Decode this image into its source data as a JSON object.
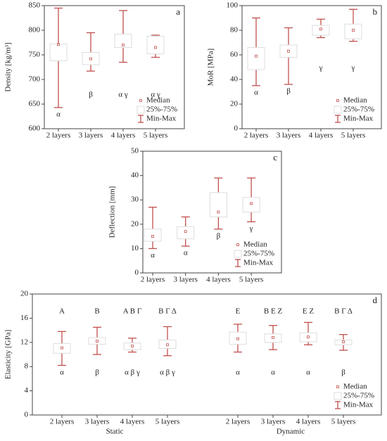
{
  "chart_data": [
    {
      "type": "box",
      "panel": "a",
      "ylabel": "Density [kg/m³]",
      "ylim": [
        600,
        850
      ],
      "yticks": [
        600,
        650,
        700,
        750,
        800,
        850
      ],
      "categories": [
        "2 layers",
        "3 layers",
        "4 layers",
        "5 layers"
      ],
      "color": "#c0504d",
      "boxes": [
        {
          "min": 643,
          "q1": 738,
          "median": 771,
          "q3": 772,
          "max": 845
        },
        {
          "min": 717,
          "q1": 730,
          "median": 742,
          "q3": 755,
          "max": 795
        },
        {
          "min": 735,
          "q1": 765,
          "median": 770,
          "q3": 792,
          "max": 840
        },
        {
          "min": 745,
          "q1": 752,
          "median": 765,
          "q3": 788,
          "max": 790
        }
      ],
      "annotations_below": [
        "α",
        "β",
        "α γ",
        "α γ"
      ],
      "legend": [
        "Median",
        "25%-75%",
        "Min-Max"
      ],
      "legend_position": "lower right"
    },
    {
      "type": "box",
      "panel": "b",
      "ylabel": "MoR [MPa]",
      "ylim": [
        0,
        100
      ],
      "yticks": [
        0,
        20,
        40,
        60,
        80,
        100
      ],
      "categories": [
        "2 layers",
        "3 layers",
        "4 layers",
        "5 layers"
      ],
      "color": "#c0504d",
      "boxes": [
        {
          "min": 35,
          "q1": 48,
          "median": 59,
          "q3": 66,
          "max": 90
        },
        {
          "min": 36,
          "q1": 58,
          "median": 63,
          "q3": 68,
          "max": 82
        },
        {
          "min": 74,
          "q1": 76,
          "median": 81,
          "q3": 84,
          "max": 89
        },
        {
          "min": 71,
          "q1": 73,
          "median": 80,
          "q3": 85,
          "max": 97
        }
      ],
      "annotations_below": [
        "α",
        "β",
        "γ",
        "γ"
      ],
      "legend": [
        "Median",
        "25%-75%",
        "Min-Max"
      ],
      "legend_position": "lower right"
    },
    {
      "type": "box",
      "panel": "c",
      "ylabel": "Deflection [mm]",
      "ylim": [
        0,
        50
      ],
      "yticks": [
        0,
        10,
        20,
        30,
        40,
        50
      ],
      "categories": [
        "2 layers",
        "3 layers",
        "4 layers",
        "5 layers"
      ],
      "color": "#c0504d",
      "boxes": [
        {
          "min": 10,
          "q1": 13,
          "median": 15,
          "q3": 18,
          "max": 27
        },
        {
          "min": 11,
          "q1": 14,
          "median": 17,
          "q3": 19,
          "max": 23
        },
        {
          "min": 18,
          "q1": 23,
          "median": 25,
          "q3": 33,
          "max": 39
        },
        {
          "min": 21,
          "q1": 25,
          "median": 28.5,
          "q3": 31,
          "max": 39
        }
      ],
      "annotations_below": [
        "α",
        "α",
        "β",
        "γ"
      ],
      "legend": [
        "Median",
        "25%-75%",
        "Min-Max"
      ],
      "legend_position": "lower right"
    },
    {
      "type": "box",
      "panel": "d",
      "ylabel": "Elasticity [GPa]",
      "ylim": [
        0,
        20
      ],
      "yticks": [
        0,
        4,
        8,
        12,
        16,
        20
      ],
      "categories": [
        "2 layers",
        "3 layers",
        "4 layers",
        "5 layers",
        "2 layers",
        "3 layers",
        "4 layers",
        "5 layers"
      ],
      "groups": [
        "Static",
        "Dynamic"
      ],
      "color": "#c0504d",
      "boxes": [
        {
          "min": 8.2,
          "q1": 10.2,
          "median": 11.1,
          "q3": 11.8,
          "max": 13.8
        },
        {
          "min": 10,
          "q1": 11.7,
          "median": 12.2,
          "q3": 12.8,
          "max": 14.5
        },
        {
          "min": 10.4,
          "q1": 10.8,
          "median": 11.4,
          "q3": 11.9,
          "max": 12.7
        },
        {
          "min": 9.8,
          "q1": 11,
          "median": 11.6,
          "q3": 12.4,
          "max": 14.6
        },
        {
          "min": 10.4,
          "q1": 11.7,
          "median": 12.6,
          "q3": 13.7,
          "max": 15
        },
        {
          "min": 10.8,
          "q1": 12,
          "median": 12.8,
          "q3": 13.4,
          "max": 14.8
        },
        {
          "min": 11.6,
          "q1": 12.1,
          "median": 12.9,
          "q3": 13.6,
          "max": 15.3
        },
        {
          "min": 10.7,
          "q1": 11.6,
          "median": 12.1,
          "q3": 12.4,
          "max": 13.3
        }
      ],
      "annotations_above": [
        "Α",
        "Β",
        "Α Β Γ",
        "Β Γ Δ",
        "Ε",
        "Β Ε Ζ",
        "Ε Ζ",
        "Β Γ Δ"
      ],
      "annotations_below": [
        "α",
        "β",
        "α β γ",
        "α β γ",
        "α",
        "α",
        "α",
        "β"
      ],
      "legend": [
        "Median",
        "25%-75%",
        "Min-Max"
      ],
      "legend_position": "lower right"
    }
  ]
}
